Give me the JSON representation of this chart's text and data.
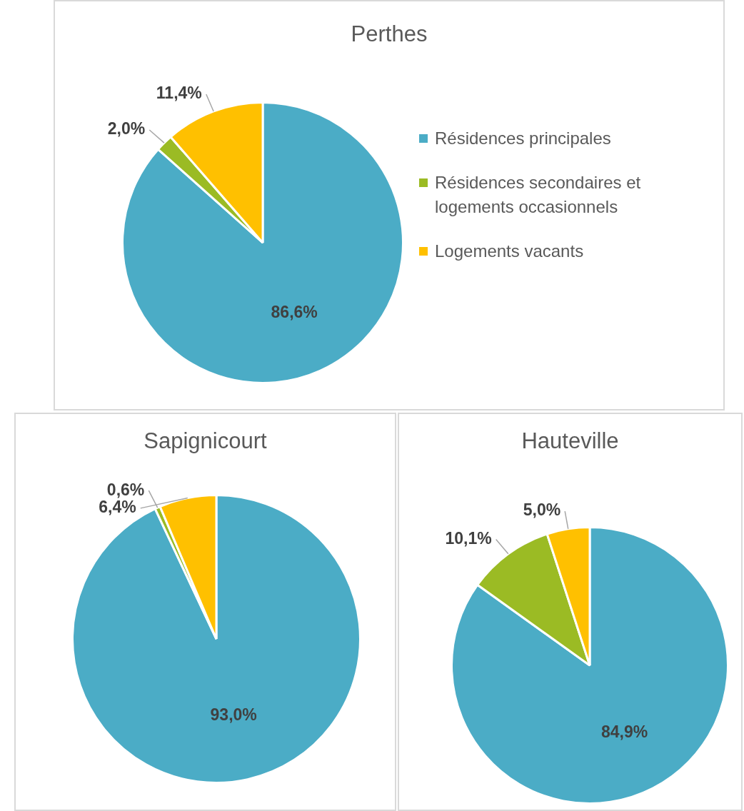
{
  "chart_data": [
    {
      "type": "pie",
      "title": "Perthes",
      "categories": [
        "Résidences principales",
        "Résidences secondaires et logements occasionnels",
        "Logements vacants"
      ],
      "values": [
        86.6,
        2.0,
        11.4
      ],
      "colors": [
        "#4bacc6",
        "#9bbb24",
        "#ffc000"
      ],
      "value_labels": [
        "86,6%",
        "2,0%",
        "11,4%"
      ],
      "legend": "right"
    },
    {
      "type": "pie",
      "title": "Sapignicourt",
      "categories": [
        null,
        null,
        null
      ],
      "values": [
        93.0,
        0.6,
        6.4
      ],
      "colors": [
        "#4bacc6",
        "#9bbb24",
        "#ffc000"
      ],
      "value_labels": [
        "93,0%",
        "0,6%",
        "6,4%"
      ]
    },
    {
      "type": "pie",
      "title": "Hauteville",
      "categories": [
        null,
        null,
        null
      ],
      "values": [
        84.9,
        10.1,
        5.0
      ],
      "colors": [
        "#4bacc6",
        "#9bbb24",
        "#ffc000"
      ],
      "value_labels": [
        "84,9%",
        "10,1%",
        "5,0%"
      ]
    }
  ]
}
